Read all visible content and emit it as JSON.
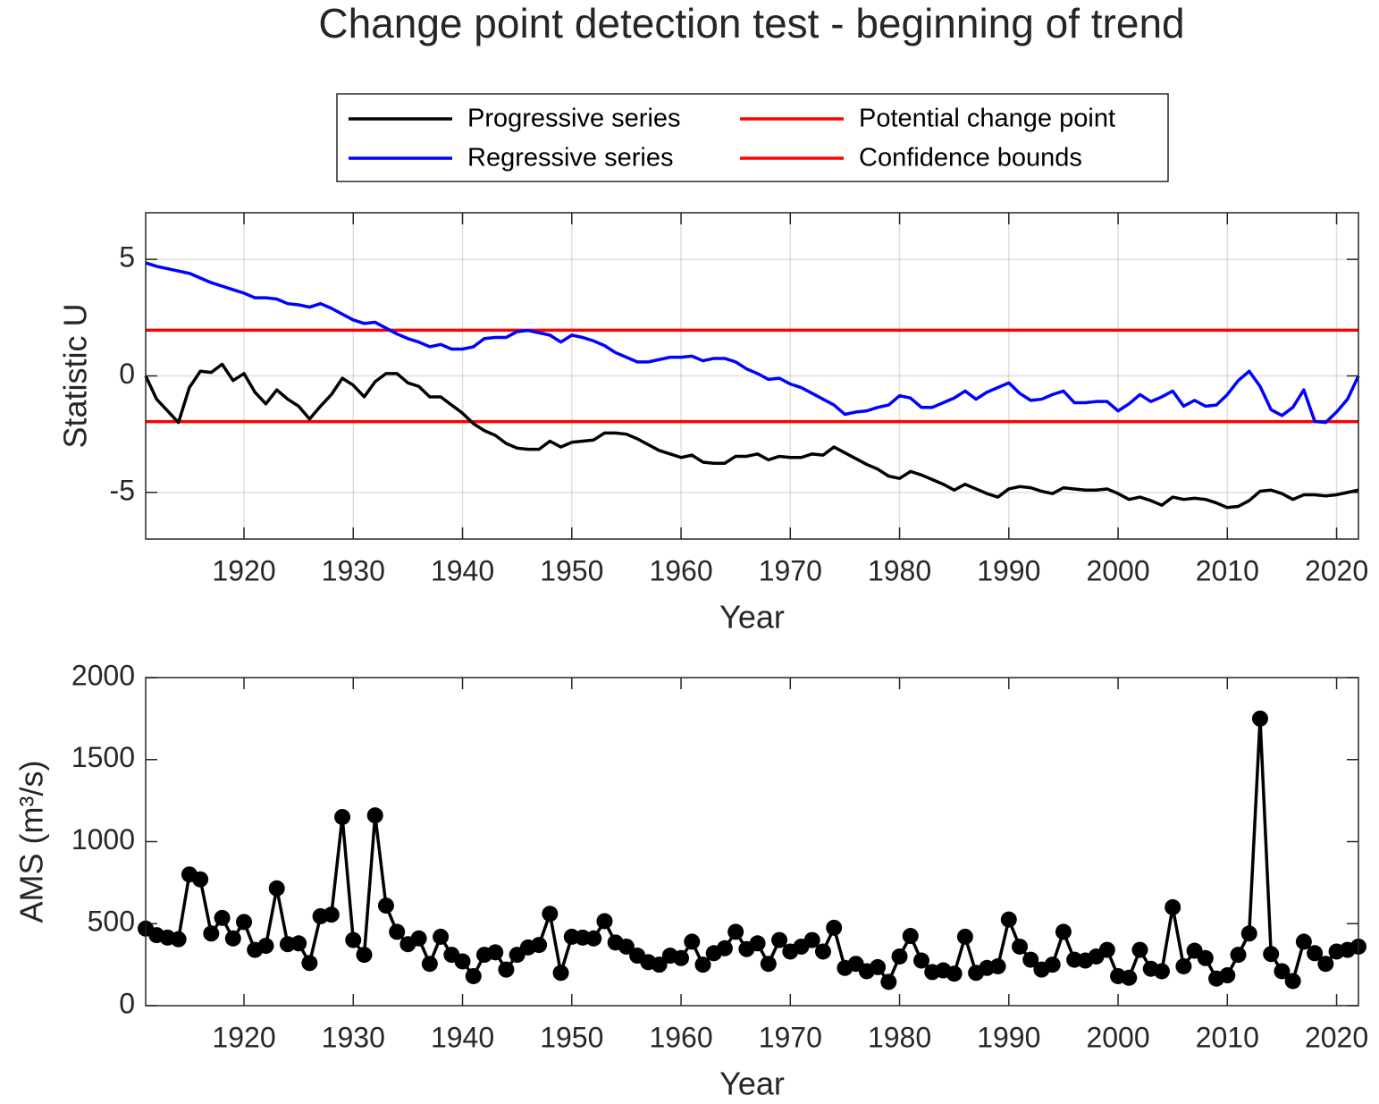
{
  "chart_data": [
    {
      "type": "line",
      "title": "Change point detection test - beginning of trend",
      "xlabel": "Year",
      "ylabel": "Statistic U",
      "xlim": [
        1911,
        2022
      ],
      "xticks": [
        1920,
        1930,
        1940,
        1950,
        1960,
        1970,
        1980,
        1990,
        2000,
        2010,
        2020
      ],
      "ylim": [
        -7,
        7
      ],
      "yticks": [
        -5,
        0,
        5
      ],
      "grid": true,
      "x": [
        1911,
        1912,
        1913,
        1914,
        1915,
        1916,
        1917,
        1918,
        1919,
        1920,
        1921,
        1922,
        1923,
        1924,
        1925,
        1926,
        1927,
        1928,
        1929,
        1930,
        1931,
        1932,
        1933,
        1934,
        1935,
        1936,
        1937,
        1938,
        1939,
        1940,
        1941,
        1942,
        1943,
        1944,
        1945,
        1946,
        1947,
        1948,
        1949,
        1950,
        1951,
        1952,
        1953,
        1954,
        1955,
        1956,
        1957,
        1958,
        1959,
        1960,
        1961,
        1962,
        1963,
        1964,
        1965,
        1966,
        1967,
        1968,
        1969,
        1970,
        1971,
        1972,
        1973,
        1974,
        1975,
        1976,
        1977,
        1978,
        1979,
        1980,
        1981,
        1982,
        1983,
        1984,
        1985,
        1986,
        1987,
        1988,
        1989,
        1990,
        1991,
        1992,
        1993,
        1994,
        1995,
        1996,
        1997,
        1998,
        1999,
        2000,
        2001,
        2002,
        2003,
        2004,
        2005,
        2006,
        2007,
        2008,
        2009,
        2010,
        2011,
        2012,
        2013,
        2014,
        2015,
        2016,
        2017,
        2018,
        2019,
        2020,
        2021,
        2022
      ],
      "series": [
        {
          "name": "Progressive series",
          "color": "#000000",
          "values": [
            0,
            -1.0,
            -1.5,
            -2.0,
            -0.5,
            0.2,
            0.15,
            0.5,
            -0.2,
            0.1,
            -0.7,
            -1.2,
            -0.6,
            -1.0,
            -1.3,
            -1.85,
            -1.3,
            -0.8,
            -0.1,
            -0.4,
            -0.9,
            -0.25,
            0.1,
            0.1,
            -0.3,
            -0.45,
            -0.9,
            -0.9,
            -1.25,
            -1.6,
            -2.05,
            -2.35,
            -2.55,
            -2.9,
            -3.1,
            -3.15,
            -3.15,
            -2.8,
            -3.05,
            -2.85,
            -2.8,
            -2.75,
            -2.45,
            -2.45,
            -2.5,
            -2.7,
            -2.95,
            -3.2,
            -3.35,
            -3.5,
            -3.4,
            -3.7,
            -3.75,
            -3.75,
            -3.45,
            -3.45,
            -3.35,
            -3.6,
            -3.45,
            -3.5,
            -3.5,
            -3.35,
            -3.4,
            -3.05,
            -3.3,
            -3.55,
            -3.8,
            -4.0,
            -4.3,
            -4.4,
            -4.1,
            -4.25,
            -4.45,
            -4.65,
            -4.9,
            -4.65,
            -4.85,
            -5.05,
            -5.2,
            -4.85,
            -4.75,
            -4.8,
            -4.95,
            -5.05,
            -4.8,
            -4.85,
            -4.9,
            -4.9,
            -4.85,
            -5.05,
            -5.3,
            -5.2,
            -5.35,
            -5.55,
            -5.2,
            -5.3,
            -5.25,
            -5.3,
            -5.45,
            -5.65,
            -5.6,
            -5.35,
            -4.95,
            -4.9,
            -5.05,
            -5.3,
            -5.1,
            -5.1,
            -5.15,
            -5.1,
            -5.0,
            -4.9
          ]
        },
        {
          "name": "Regressive series",
          "color": "#0000ff",
          "values": [
            4.85,
            4.7,
            4.6,
            4.5,
            4.4,
            4.2,
            4.0,
            3.85,
            3.7,
            3.55,
            3.35,
            3.35,
            3.3,
            3.1,
            3.05,
            2.95,
            3.1,
            2.9,
            2.65,
            2.4,
            2.25,
            2.3,
            2.05,
            1.8,
            1.6,
            1.45,
            1.25,
            1.35,
            1.15,
            1.15,
            1.25,
            1.6,
            1.65,
            1.65,
            1.9,
            1.95,
            1.85,
            1.75,
            1.45,
            1.75,
            1.65,
            1.5,
            1.3,
            1.0,
            0.8,
            0.6,
            0.6,
            0.7,
            0.8,
            0.8,
            0.85,
            0.65,
            0.75,
            0.75,
            0.6,
            0.3,
            0.1,
            -0.15,
            -0.1,
            -0.35,
            -0.5,
            -0.75,
            -1.0,
            -1.25,
            -1.65,
            -1.55,
            -1.5,
            -1.35,
            -1.25,
            -0.85,
            -0.95,
            -1.35,
            -1.35,
            -1.15,
            -0.95,
            -0.65,
            -1.0,
            -0.7,
            -0.5,
            -0.3,
            -0.75,
            -1.05,
            -1.0,
            -0.8,
            -0.65,
            -1.15,
            -1.15,
            -1.1,
            -1.1,
            -1.5,
            -1.2,
            -0.8,
            -1.1,
            -0.9,
            -0.65,
            -1.3,
            -1.05,
            -1.3,
            -1.25,
            -0.8,
            -0.2,
            0.2,
            -0.45,
            -1.45,
            -1.7,
            -1.35,
            -0.6,
            -1.95,
            -2.0,
            -1.55,
            -1.0,
            0
          ]
        }
      ],
      "change_point": {
        "name": "Potential change point",
        "color": "#ff0000"
      },
      "hlines": {
        "name": "Confidence bounds",
        "color": "#ff0000",
        "values": [
          1.96,
          -1.96
        ]
      }
    },
    {
      "type": "line_markers",
      "xlabel": "Year",
      "ylabel": "AMS (m³/s)",
      "xlim": [
        1911,
        2022
      ],
      "xticks": [
        1920,
        1930,
        1940,
        1950,
        1960,
        1970,
        1980,
        1990,
        2000,
        2010,
        2020
      ],
      "ylim": [
        0,
        2000
      ],
      "yticks": [
        0,
        500,
        1000,
        1500,
        2000
      ],
      "grid": false,
      "x": [
        1911,
        1912,
        1913,
        1914,
        1915,
        1916,
        1917,
        1918,
        1919,
        1920,
        1921,
        1922,
        1923,
        1924,
        1925,
        1926,
        1927,
        1928,
        1929,
        1930,
        1931,
        1932,
        1933,
        1934,
        1935,
        1936,
        1937,
        1938,
        1939,
        1940,
        1941,
        1942,
        1943,
        1944,
        1945,
        1946,
        1947,
        1948,
        1949,
        1950,
        1951,
        1952,
        1953,
        1954,
        1955,
        1956,
        1957,
        1958,
        1959,
        1960,
        1961,
        1962,
        1963,
        1964,
        1965,
        1966,
        1967,
        1968,
        1969,
        1970,
        1971,
        1972,
        1973,
        1974,
        1975,
        1976,
        1977,
        1978,
        1979,
        1980,
        1981,
        1982,
        1983,
        1984,
        1985,
        1986,
        1987,
        1988,
        1989,
        1990,
        1991,
        1992,
        1993,
        1994,
        1995,
        1996,
        1997,
        1998,
        1999,
        2000,
        2001,
        2002,
        2003,
        2004,
        2005,
        2006,
        2007,
        2008,
        2009,
        2010,
        2011,
        2012,
        2013,
        2014,
        2015,
        2016,
        2017,
        2018,
        2019,
        2020,
        2021,
        2022
      ],
      "series": [
        {
          "color": "#000000",
          "values": [
            470,
            430,
            415,
            405,
            800,
            770,
            440,
            535,
            410,
            510,
            340,
            365,
            715,
            375,
            380,
            260,
            545,
            555,
            1150,
            400,
            310,
            1160,
            610,
            450,
            375,
            410,
            255,
            420,
            310,
            270,
            180,
            310,
            325,
            220,
            310,
            355,
            370,
            560,
            200,
            420,
            415,
            410,
            515,
            385,
            360,
            305,
            265,
            250,
            305,
            290,
            390,
            250,
            320,
            350,
            450,
            345,
            380,
            255,
            400,
            330,
            360,
            400,
            330,
            475,
            230,
            255,
            210,
            235,
            145,
            300,
            425,
            275,
            205,
            215,
            195,
            420,
            200,
            230,
            240,
            525,
            360,
            280,
            220,
            250,
            450,
            280,
            275,
            300,
            340,
            180,
            170,
            340,
            225,
            210,
            600,
            240,
            335,
            290,
            165,
            185,
            310,
            440,
            1750,
            315,
            210,
            150,
            390,
            320,
            255,
            330,
            340,
            360
          ]
        }
      ]
    }
  ]
}
